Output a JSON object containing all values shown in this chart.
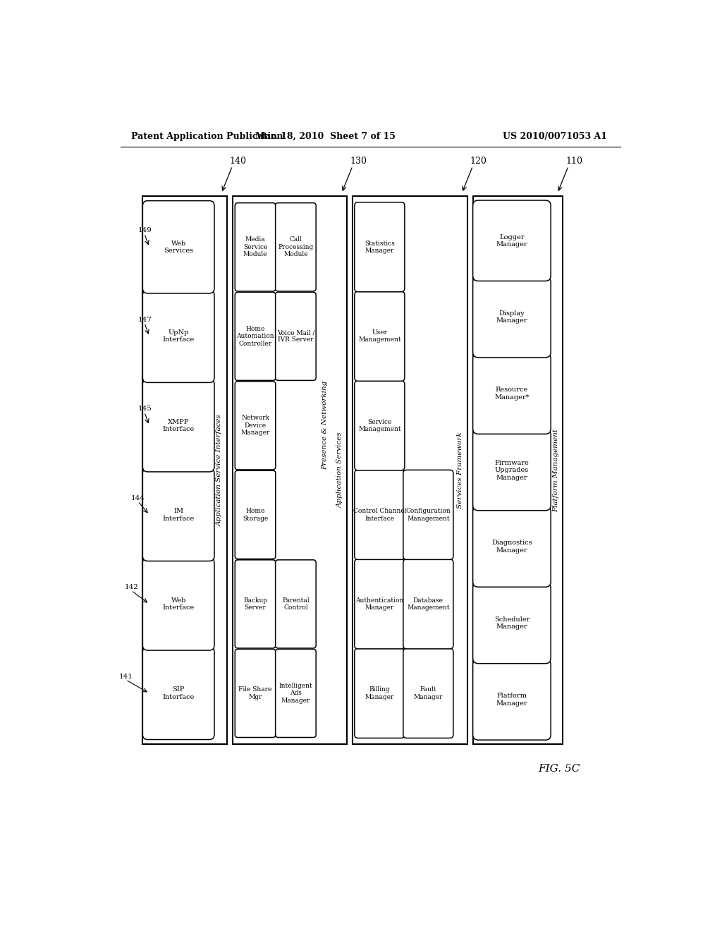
{
  "header_left": "Patent Application Publication",
  "header_center": "Mar. 18, 2010  Sheet 7 of 15",
  "header_right": "US 2010/0071053 A1",
  "fig_label": "FIG. 5C",
  "background_color": "#ffffff",
  "band140_label": "Application Service Interfaces",
  "band140_id": "140",
  "band130_label": "Application Services",
  "band130_id": "130",
  "band120_label": "Services Framework",
  "band120_id": "120",
  "band110_label": "Platform Management",
  "band110_id": "110",
  "iface_labels": [
    "SIP\nInterface",
    "Web\nInterface",
    "IM\nInterface",
    "XMPP\nInterface",
    "UpNp\nInterface",
    "Web\nServices"
  ],
  "iface_ann_labels": [
    "141",
    "142",
    "144",
    "145",
    "147",
    "149"
  ],
  "band130_left": [
    "File Share\nMgr",
    "Backup\nServer",
    "Home\nStorage",
    "Network\nDevice\nManager",
    "Home\nAutomation\nController",
    "Media\nService\nModule"
  ],
  "band130_right": [
    "Intelligent\nAds\nManager",
    "Parental\nControl",
    null,
    null,
    "Voice Mail /\nIVR Server",
    "Call\nProcessing\nModule"
  ],
  "band130_pn_label": "Presence & Networking",
  "band120_left": [
    "Billing\nManager",
    "Authentication\nManager",
    "Control Channel\nInterface",
    "Service\nManagement",
    "User\nManagement",
    "Statistics\nManager"
  ],
  "band120_right": [
    "Fault\nManager",
    "Database\nManagement",
    "Configuration\nManagement",
    null,
    null,
    null
  ],
  "band110_items": [
    "Platform\nManager",
    "Scheduler\nManager",
    "Diagnostics\nManager",
    "Firmware\nUpgrades\nManager",
    "Resource\nManager*",
    "Display\nManager",
    "Logger\nManager"
  ]
}
